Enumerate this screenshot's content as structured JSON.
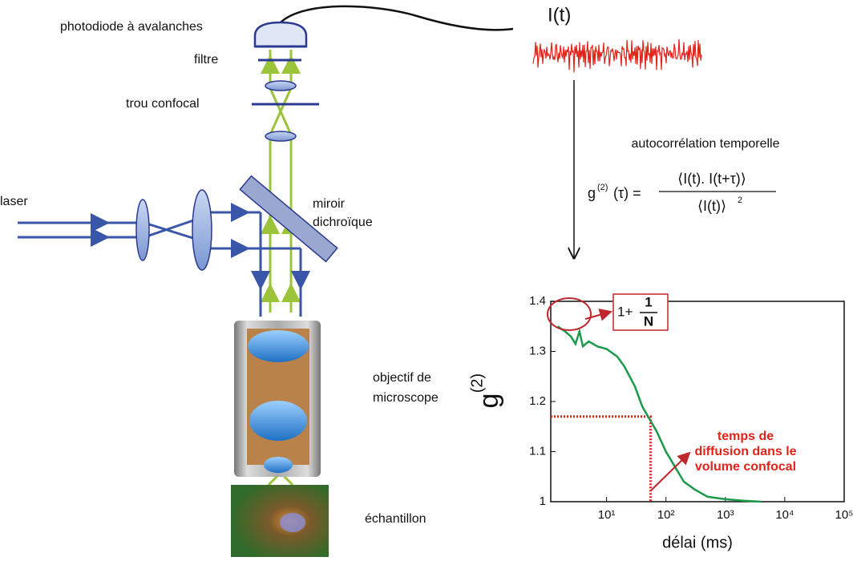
{
  "labels": {
    "photodiode": "photodiode à avalanches",
    "filter": "filtre",
    "pinhole": "trou confocal",
    "laser": "laser",
    "mirror": [
      "miroir",
      "dichroïque"
    ],
    "objective": [
      "objectif de",
      "microscope"
    ],
    "sample": "échantillon",
    "signal": "I(t)",
    "autocorrelation": "autocorrélation temporelle"
  },
  "formula": {
    "lhs": "g",
    "lhs_sup": "(2)",
    "lhs_arg": "(τ) =",
    "numerator": "⟨I(t). I(t+τ)⟩",
    "denominator": "⟨I(t)⟩",
    "denominator_sup": "2"
  },
  "chart_data": {
    "type": "line",
    "ylabel": "g",
    "ylabel_sup": "(2)",
    "xlabel": "délai (ms)",
    "log_x": true,
    "xlim": [
      1.15,
      100000
    ],
    "ylim": [
      1,
      1.4
    ],
    "xticks": [
      {
        "value": 10,
        "label": "10¹"
      },
      {
        "value": 100,
        "label": "10²"
      },
      {
        "value": 1000,
        "label": "10³"
      },
      {
        "value": 10000,
        "label": "10⁴"
      },
      {
        "value": 100000,
        "label": "10⁵"
      }
    ],
    "yticks": [
      1,
      1.1,
      1.2,
      1.3,
      1.4
    ],
    "series": [
      {
        "color": "#1a9a4a",
        "x": [
          1.5,
          2,
          2.5,
          3,
          3.5,
          4,
          5,
          7,
          10,
          15,
          20,
          30,
          40,
          50,
          70,
          100,
          150,
          200,
          300,
          500,
          1000,
          2000,
          4000
        ],
        "values": [
          1.35,
          1.34,
          1.33,
          1.315,
          1.34,
          1.31,
          1.32,
          1.31,
          1.305,
          1.29,
          1.27,
          1.23,
          1.19,
          1.17,
          1.14,
          1.1,
          1.065,
          1.04,
          1.025,
          1.01,
          1.005,
          1.002,
          1.0
        ]
      }
    ],
    "guide": {
      "x": 55,
      "y": 1.17
    },
    "limit_note": {
      "prefix": "1+",
      "numerator": "1",
      "denominator": "N"
    },
    "annotation": [
      "temps de",
      "diffusion dans le",
      "volume confocal"
    ]
  }
}
